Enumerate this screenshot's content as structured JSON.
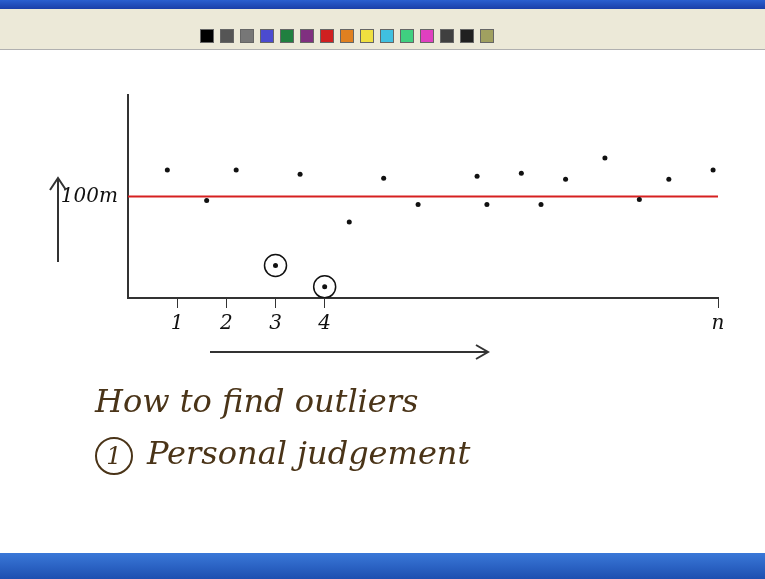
{
  "chart_data": {
    "type": "scatter",
    "xlim": [
      0,
      12
    ],
    "xticks": [
      1,
      2,
      3,
      4,
      {
        "value": 12,
        "label": "n"
      }
    ],
    "ylim": [
      0,
      200
    ],
    "yticks": [
      {
        "value": 100,
        "label": "100m"
      }
    ],
    "grid": false,
    "series": [
      {
        "type": "scatter",
        "color": "#111111",
        "marker": "dot",
        "x": [
          0.8,
          1.6,
          2.2,
          3,
          3.5,
          4,
          4.5,
          5.2,
          5.9,
          7.1,
          7.3,
          8.0,
          8.4,
          8.9,
          9.7,
          10.4,
          11.0,
          11.9
        ],
        "values": [
          126,
          96,
          126,
          32,
          122,
          11,
          75,
          118,
          92,
          120,
          92,
          123,
          92,
          117,
          138,
          97,
          117,
          126
        ]
      },
      {
        "type": "line",
        "color": "#d62020",
        "line_style": "solid",
        "x": [
          0,
          12
        ],
        "values": [
          100,
          100
        ]
      },
      {
        "type": "scatter",
        "color": "#111111",
        "marker": "ring",
        "x": [
          3,
          4
        ],
        "values": [
          32,
          11
        ]
      }
    ],
    "annotations": [
      {
        "text": "How to find outliers"
      },
      {
        "number": "1",
        "text": "Personal judgement"
      }
    ]
  }
}
